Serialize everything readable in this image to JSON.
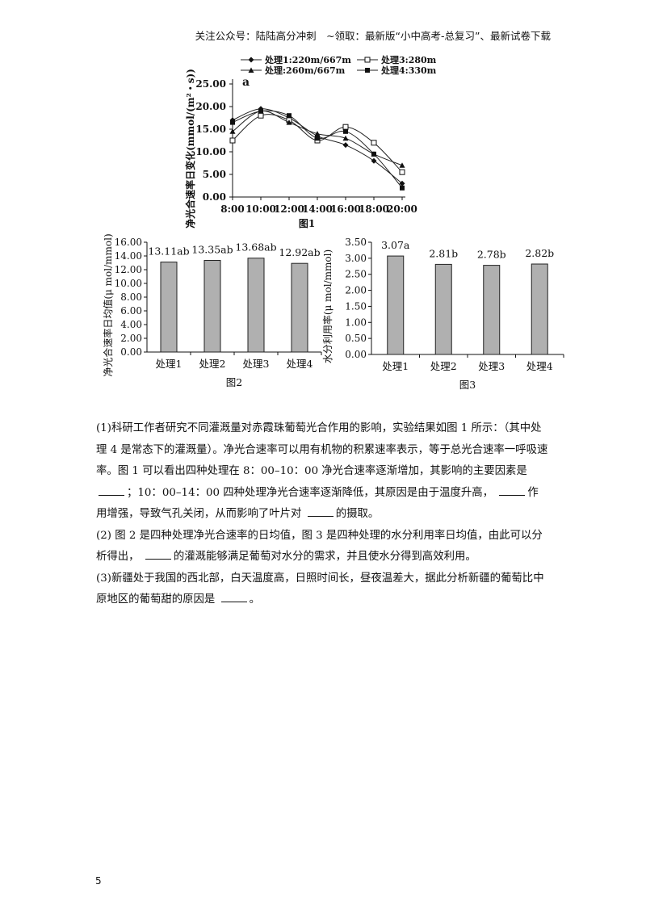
{
  "header": "关注公众号：陆陆高分冲刺　~领取：最新版“小中高考-总复习”、最新试卷下载",
  "chart_data": [
    {
      "type": "line",
      "panel_label": "a",
      "title": "图1",
      "ylabel": "净光合速率日变化(mmol/(m²・s))",
      "x": [
        "8:00",
        "10:00",
        "12:00",
        "14:00",
        "16:00",
        "18:00",
        "20:00"
      ],
      "y_ticks": [
        "25.00",
        "20.00",
        "15.00",
        "10.00",
        "5.00",
        "0.00"
      ],
      "ylim": [
        0,
        25
      ],
      "legend": [
        "处理1:220m/667m",
        "处理3:280m/667m",
        "处理:260m/667m",
        "处理4:330m/667m"
      ],
      "series": [
        {
          "name": "处理1:220m/667m",
          "marker": "diamond",
          "values": [
            17.0,
            19.5,
            17.5,
            13.5,
            11.5,
            8.0,
            3.0
          ]
        },
        {
          "name": "处理3:280m/667m",
          "marker": "square-open",
          "values": [
            12.5,
            18.0,
            17.0,
            12.5,
            15.5,
            12.0,
            5.5
          ]
        },
        {
          "name": "处理:260m/667m",
          "marker": "triangle",
          "values": [
            14.5,
            19.0,
            16.5,
            14.0,
            13.0,
            9.5,
            7.0
          ]
        },
        {
          "name": "处理4:330m/667m",
          "marker": "square",
          "values": [
            16.5,
            19.0,
            18.0,
            13.0,
            14.5,
            9.5,
            2.0
          ]
        }
      ]
    },
    {
      "type": "bar",
      "title": "图2",
      "ylabel": "净光合速率日均值(μ mol/mmol)",
      "categories": [
        "处理1",
        "处理2",
        "处理3",
        "处理4"
      ],
      "values": [
        13.11,
        13.35,
        13.68,
        12.92
      ],
      "data_labels": [
        "13.11ab",
        "13.35ab",
        "13.68ab",
        "12.92ab"
      ],
      "y_ticks": [
        "16.00",
        "14.00",
        "12.00",
        "10.00",
        "8.00",
        "6.00",
        "4.00",
        "2.00",
        "0.00"
      ],
      "ylim": [
        0,
        16
      ]
    },
    {
      "type": "bar",
      "title": "图3",
      "ylabel": "水分利用率(μ mol/mmol)",
      "categories": [
        "处理1",
        "处理2",
        "处理3",
        "处理4"
      ],
      "values": [
        3.07,
        2.81,
        2.78,
        2.82
      ],
      "data_labels": [
        "3.07a",
        "2.81b",
        "2.78b",
        "2.82b"
      ],
      "y_ticks": [
        "3.50",
        "3.00",
        "2.50",
        "2.00",
        "1.50",
        "1.00",
        "0.50",
        "0.00"
      ],
      "ylim": [
        0,
        3.5
      ]
    }
  ],
  "question": {
    "p1_a": "(1)科研工作者研究不同灌溉量对赤霞珠葡萄光合作用的影响，实验结果如图 1 所示：（其中处理 4 是常态下的灌溉量）。净光合速率可以用有机物的积累速率表示，等于总光合速率一呼吸速率。图 1 可以看出四种处理在 8：00–10：00 净光合速率逐渐增加，其影响的主要因素是",
    "p1_b": "；10：00–14：00 四种处理净光合速率逐渐降低，其原因是由于温度升高，",
    "p1_c": "作用增强，导致气孔关闭，从而影响了叶片对",
    "p1_d": "的摄取。",
    "p2_a": "(2) 图 2 是四种处理净光合速率的日均值，图 3 是四种处理的水分利用率日均值，由此可以分析得出，",
    "p2_b": "的灌溉能够满足葡萄对水分的需求，并且使水分得到高效利用。",
    "p3_a": "(3)新疆处于我国的西北部，白天温度高，日照时间长，昼夜温差大，据此分析新疆的葡萄比中原地区的葡萄甜的原因是",
    "p3_b": "。"
  },
  "page_number": "5"
}
